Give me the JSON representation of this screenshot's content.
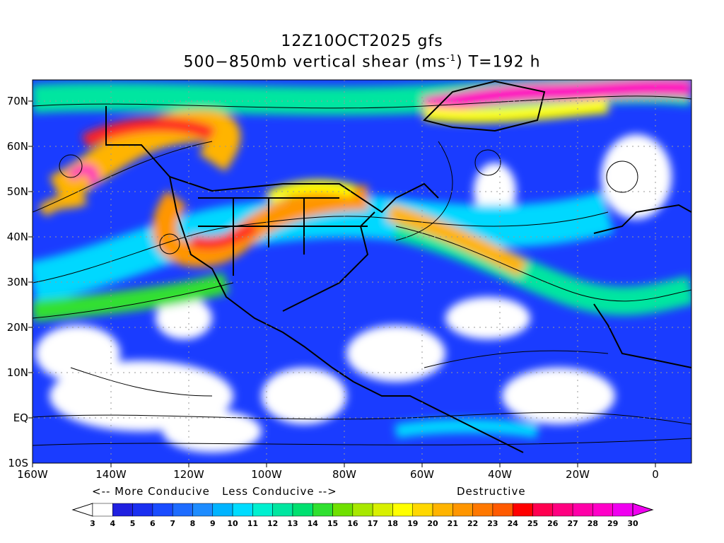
{
  "title_line1": "12Z10OCT2025 gfs",
  "title_line2_pre": "500−850mb vertical shear (ms",
  "title_line2_sup": "-1",
  "title_line2_post": ") T=192 h",
  "lat_labels": [
    "70N",
    "60N",
    "50N",
    "40N",
    "30N",
    "20N",
    "10N",
    "EQ",
    "10S"
  ],
  "lon_labels": [
    "160W",
    "140W",
    "120W",
    "100W",
    "80W",
    "60W",
    "40W",
    "20W",
    "0"
  ],
  "legend_notes": {
    "conducive": "<-- More Conducive   Less Conducive -->",
    "destructive": "Destructive"
  },
  "colorbar": {
    "labels": [
      "3",
      "4",
      "5",
      "6",
      "7",
      "8",
      "9",
      "10",
      "11",
      "12",
      "13",
      "14",
      "15",
      "16",
      "17",
      "18",
      "19",
      "20",
      "21",
      "22",
      "23",
      "24",
      "25",
      "26",
      "27",
      "28",
      "29",
      "30"
    ],
    "colors": [
      "#ffffff",
      "#2020e0",
      "#1a2ff0",
      "#1a4cff",
      "#1e6cff",
      "#1e8cff",
      "#00b4ff",
      "#00dcff",
      "#00f0d0",
      "#00e6a0",
      "#00e070",
      "#30e030",
      "#70e000",
      "#a8e800",
      "#d8f000",
      "#ffff00",
      "#ffd800",
      "#ffb400",
      "#ff9600",
      "#ff7800",
      "#ff5a00",
      "#ff0000",
      "#ff0050",
      "#ff0080",
      "#ff00a8",
      "#ff00c8",
      "#f000f0"
    ]
  },
  "colors": {
    "white": "#ffffff",
    "blue": "#1a3cff",
    "cyan": "#00d8ff",
    "green": "#30e030",
    "yellow": "#ffff00",
    "orange": "#ff9600",
    "red": "#ff2020",
    "magenta": "#ff00c0"
  }
}
